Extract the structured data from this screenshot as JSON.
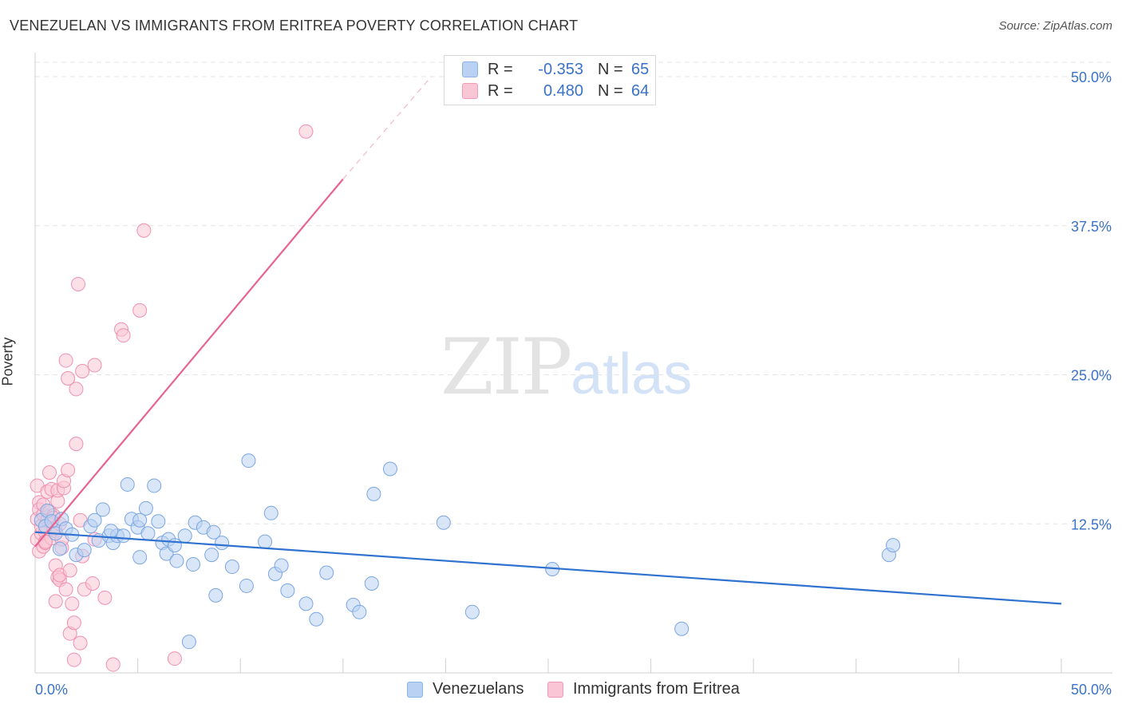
{
  "header": {
    "title": "VENEZUELAN VS IMMIGRANTS FROM ERITREA POVERTY CORRELATION CHART",
    "source": "Source: ZipAtlas.com"
  },
  "watermark": {
    "zip": "ZIP",
    "atlas": "atlas"
  },
  "legend": {
    "rows": [
      {
        "r_label": "R =",
        "r_value": "-0.353",
        "n_label": "N =",
        "n_value": "65"
      },
      {
        "r_label": "R =",
        "r_value": "0.480",
        "n_label": "N =",
        "n_value": "64"
      }
    ]
  },
  "bottom_legend": {
    "series1": "Venezuelans",
    "series2": "Immigrants from Eritrea"
  },
  "colors": {
    "blue_fill": "#b9d1f2",
    "blue_stroke": "#7aa6e3",
    "blue_line": "#2f72d0",
    "pink_fill": "#f9c6d6",
    "pink_stroke": "#ef90b0",
    "pink_line": "#e8648f",
    "axis_label": "#3a72c9",
    "grid": "#e4e4e4"
  },
  "chart_data": {
    "type": "scatter",
    "title": "VENEZUELAN VS IMMIGRANTS FROM ERITREA POVERTY CORRELATION CHART",
    "xlabel": "",
    "ylabel": "Poverty",
    "xlim": [
      0,
      50
    ],
    "ylim": [
      0,
      50
    ],
    "x_tick_labels": [
      "0.0%",
      "50.0%"
    ],
    "y_tick_labels": [
      "12.5%",
      "25.0%",
      "37.5%",
      "50.0%"
    ],
    "y_ticks": [
      12.5,
      25.0,
      37.5,
      50.0
    ],
    "grid": true,
    "legend_position": "top-center",
    "series": [
      {
        "name": "Venezuelans",
        "r": -0.353,
        "n": 65,
        "trend": {
          "x": [
            0,
            50
          ],
          "y": [
            11.8,
            5.8
          ]
        },
        "points": [
          [
            0.3,
            12.8
          ],
          [
            0.5,
            12.3
          ],
          [
            0.6,
            13.6
          ],
          [
            0.8,
            12.7
          ],
          [
            1.0,
            11.7
          ],
          [
            1.2,
            10.4
          ],
          [
            1.3,
            12.9
          ],
          [
            1.5,
            12.1
          ],
          [
            1.8,
            11.6
          ],
          [
            2.0,
            9.9
          ],
          [
            2.4,
            10.3
          ],
          [
            2.7,
            12.3
          ],
          [
            2.9,
            12.8
          ],
          [
            3.1,
            11.1
          ],
          [
            3.3,
            13.7
          ],
          [
            3.6,
            11.5
          ],
          [
            3.8,
            10.9
          ],
          [
            4.0,
            11.5
          ],
          [
            4.3,
            11.5
          ],
          [
            4.5,
            15.8
          ],
          [
            4.7,
            12.9
          ],
          [
            5.0,
            12.2
          ],
          [
            5.1,
            9.7
          ],
          [
            5.1,
            12.8
          ],
          [
            5.5,
            11.7
          ],
          [
            5.4,
            13.8
          ],
          [
            5.8,
            15.7
          ],
          [
            6.0,
            12.7
          ],
          [
            6.2,
            10.9
          ],
          [
            6.5,
            11.2
          ],
          [
            6.4,
            10.0
          ],
          [
            6.8,
            10.7
          ],
          [
            6.9,
            9.4
          ],
          [
            7.3,
            11.5
          ],
          [
            7.7,
            9.1
          ],
          [
            7.8,
            12.6
          ],
          [
            8.2,
            12.2
          ],
          [
            8.6,
            9.9
          ],
          [
            8.8,
            6.5
          ],
          [
            8.7,
            11.8
          ],
          [
            9.1,
            10.9
          ],
          [
            9.6,
            8.9
          ],
          [
            10.3,
            7.3
          ],
          [
            10.4,
            17.8
          ],
          [
            11.2,
            11.0
          ],
          [
            11.5,
            13.4
          ],
          [
            11.7,
            8.3
          ],
          [
            12.0,
            9.0
          ],
          [
            12.3,
            6.9
          ],
          [
            13.2,
            5.8
          ],
          [
            13.7,
            4.5
          ],
          [
            14.2,
            8.4
          ],
          [
            15.5,
            5.7
          ],
          [
            15.8,
            5.1
          ],
          [
            16.4,
            7.5
          ],
          [
            16.5,
            15.0
          ],
          [
            17.3,
            17.1
          ],
          [
            19.9,
            12.6
          ],
          [
            21.3,
            5.1
          ],
          [
            25.2,
            8.7
          ],
          [
            31.5,
            3.7
          ],
          [
            41.6,
            9.9
          ],
          [
            41.8,
            10.7
          ],
          [
            7.5,
            2.6
          ],
          [
            3.7,
            11.9
          ]
        ]
      },
      {
        "name": "Immigrants from Eritrea",
        "r": 0.48,
        "n": 64,
        "trend": {
          "x": [
            0,
            15
          ],
          "y": [
            10.6,
            41.4
          ]
        },
        "trend_dashed": {
          "x": [
            15,
            19.3
          ],
          "y": [
            41.4,
            50.0
          ]
        },
        "points": [
          [
            0.1,
            11.2
          ],
          [
            0.1,
            12.9
          ],
          [
            0.1,
            15.7
          ],
          [
            0.2,
            14.3
          ],
          [
            0.2,
            10.2
          ],
          [
            0.2,
            13.7
          ],
          [
            0.3,
            11.7
          ],
          [
            0.3,
            12.3
          ],
          [
            0.4,
            10.6
          ],
          [
            0.4,
            13.3
          ],
          [
            0.4,
            14.1
          ],
          [
            0.5,
            11.8
          ],
          [
            0.5,
            10.9
          ],
          [
            0.6,
            15.2
          ],
          [
            0.6,
            12.8
          ],
          [
            0.7,
            13.5
          ],
          [
            0.7,
            16.8
          ],
          [
            0.8,
            11.3
          ],
          [
            0.8,
            15.4
          ],
          [
            0.9,
            12.1
          ],
          [
            0.9,
            13.2
          ],
          [
            1.0,
            9.0
          ],
          [
            1.0,
            11.9
          ],
          [
            1.0,
            6.0
          ],
          [
            1.1,
            8.0
          ],
          [
            1.1,
            14.4
          ],
          [
            1.1,
            15.3
          ],
          [
            1.2,
            7.8
          ],
          [
            1.2,
            8.2
          ],
          [
            1.3,
            10.5
          ],
          [
            1.3,
            11.2
          ],
          [
            1.4,
            15.5
          ],
          [
            1.4,
            16.1
          ],
          [
            1.5,
            26.2
          ],
          [
            1.6,
            24.7
          ],
          [
            1.6,
            17.0
          ],
          [
            1.7,
            8.6
          ],
          [
            1.7,
            3.3
          ],
          [
            1.8,
            5.8
          ],
          [
            1.9,
            4.2
          ],
          [
            1.9,
            1.1
          ],
          [
            2.0,
            19.2
          ],
          [
            2.0,
            23.8
          ],
          [
            2.1,
            32.6
          ],
          [
            2.2,
            12.8
          ],
          [
            2.2,
            2.5
          ],
          [
            2.3,
            9.8
          ],
          [
            2.3,
            25.3
          ],
          [
            2.4,
            7.0
          ],
          [
            2.8,
            7.5
          ],
          [
            2.9,
            25.8
          ],
          [
            2.9,
            11.2
          ],
          [
            3.4,
            6.3
          ],
          [
            3.8,
            0.7
          ],
          [
            4.2,
            28.8
          ],
          [
            4.3,
            28.3
          ],
          [
            5.1,
            30.4
          ],
          [
            5.3,
            37.1
          ],
          [
            6.8,
            1.2
          ],
          [
            13.2,
            45.4
          ],
          [
            1.5,
            7.0
          ],
          [
            0.9,
            13.0
          ],
          [
            0.5,
            11.0
          ],
          [
            1.2,
            12.5
          ]
        ]
      }
    ]
  }
}
